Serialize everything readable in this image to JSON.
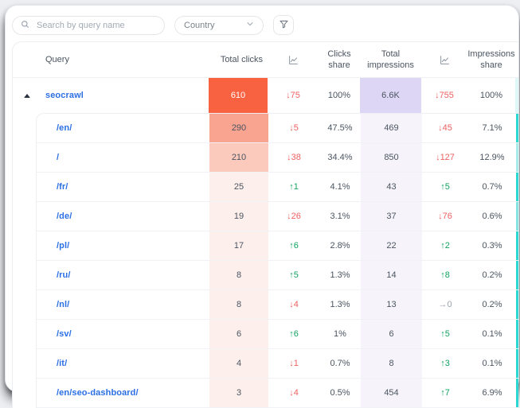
{
  "toolbar": {
    "search_placeholder": "Search by query name",
    "country_label": "Country"
  },
  "table": {
    "headers": {
      "query": "Query",
      "total_clicks": "Total clicks",
      "clicks_share": "Clicks share",
      "total_impressions": "Total impressions",
      "impressions_share": "Impressions share"
    },
    "rows": [
      {
        "name": "seocrawl",
        "level": 0,
        "expanded": true,
        "clicks": "610",
        "clicks_delta": "↓75",
        "clicks_delta_dir": "down",
        "clicks_share": "100%",
        "impressions": "6.6K",
        "impressions_delta": "↓755",
        "impressions_delta_dir": "down",
        "impressions_share": "100%",
        "clicks_bg": "#f96240",
        "clicks_text": "#ffffff",
        "impressions_bg": "#ddd7f5",
        "ctr_bar": "#dff7f6"
      },
      {
        "name": "/en/",
        "level": 1,
        "clicks": "290",
        "clicks_delta": "↓5",
        "clicks_delta_dir": "down",
        "clicks_share": "47.5%",
        "impressions": "469",
        "impressions_delta": "↓45",
        "impressions_delta_dir": "down",
        "impressions_share": "7.1%",
        "clicks_bg": "#f8a491",
        "clicks_text": "#4a5460",
        "impressions_bg": "#f6f4fa",
        "ctr_bar": "#2cd9d2"
      },
      {
        "name": "/",
        "level": 1,
        "clicks": "210",
        "clicks_delta": "↓38",
        "clicks_delta_dir": "down",
        "clicks_share": "34.4%",
        "impressions": "850",
        "impressions_delta": "↓127",
        "impressions_delta_dir": "down",
        "impressions_share": "12.9%",
        "clicks_bg": "#fbcabd",
        "clicks_text": "#4a5460",
        "impressions_bg": "#f6f4fa",
        "ctr_bar": "#a9ece9"
      },
      {
        "name": "/fr/",
        "level": 1,
        "clicks": "25",
        "clicks_delta": "↑1",
        "clicks_delta_dir": "up",
        "clicks_share": "4.1%",
        "impressions": "43",
        "impressions_delta": "↑5",
        "impressions_delta_dir": "up",
        "impressions_share": "0.7%",
        "clicks_bg": "#fdefeb",
        "clicks_text": "#4a5460",
        "impressions_bg": "#f6f4fa",
        "ctr_bar": "#2cd9d2"
      },
      {
        "name": "/de/",
        "level": 1,
        "clicks": "19",
        "clicks_delta": "↓26",
        "clicks_delta_dir": "down",
        "clicks_share": "3.1%",
        "impressions": "37",
        "impressions_delta": "↓76",
        "impressions_delta_dir": "down",
        "impressions_share": "0.6%",
        "clicks_bg": "#fdefeb",
        "clicks_text": "#4a5460",
        "impressions_bg": "#f6f4fa",
        "ctr_bar": "#86e5e0"
      },
      {
        "name": "/pl/",
        "level": 1,
        "clicks": "17",
        "clicks_delta": "↑6",
        "clicks_delta_dir": "up",
        "clicks_share": "2.8%",
        "impressions": "22",
        "impressions_delta": "↑2",
        "impressions_delta_dir": "up",
        "impressions_share": "0.3%",
        "clicks_bg": "#fdefeb",
        "clicks_text": "#4a5460",
        "impressions_bg": "#f6f4fa",
        "ctr_bar": "#2cd9d2"
      },
      {
        "name": "/ru/",
        "level": 1,
        "clicks": "8",
        "clicks_delta": "↑5",
        "clicks_delta_dir": "up",
        "clicks_share": "1.3%",
        "impressions": "14",
        "impressions_delta": "↑8",
        "impressions_delta_dir": "up",
        "impressions_share": "0.2%",
        "clicks_bg": "#fdefeb",
        "clicks_text": "#4a5460",
        "impressions_bg": "#f6f4fa",
        "ctr_bar": "#2cd9d2"
      },
      {
        "name": "/nl/",
        "level": 1,
        "clicks": "8",
        "clicks_delta": "↓4",
        "clicks_delta_dir": "down",
        "clicks_share": "1.3%",
        "impressions": "13",
        "impressions_delta": "→0",
        "impressions_delta_dir": "flat",
        "impressions_share": "0.2%",
        "clicks_bg": "#fdefeb",
        "clicks_text": "#4a5460",
        "impressions_bg": "#f6f4fa",
        "ctr_bar": "#2cd9d2"
      },
      {
        "name": "/sv/",
        "level": 1,
        "clicks": "6",
        "clicks_delta": "↑6",
        "clicks_delta_dir": "up",
        "clicks_share": "1%",
        "impressions": "6",
        "impressions_delta": "↑5",
        "impressions_delta_dir": "up",
        "impressions_share": "0.1%",
        "clicks_bg": "#fdefeb",
        "clicks_text": "#4a5460",
        "impressions_bg": "#f6f4fa",
        "ctr_bar": "#2cd9d2"
      },
      {
        "name": "/it/",
        "level": 1,
        "clicks": "4",
        "clicks_delta": "↓1",
        "clicks_delta_dir": "down",
        "clicks_share": "0.7%",
        "impressions": "8",
        "impressions_delta": "↑3",
        "impressions_delta_dir": "up",
        "impressions_share": "0.1%",
        "clicks_bg": "#fdefeb",
        "clicks_text": "#4a5460",
        "impressions_bg": "#f6f4fa",
        "ctr_bar": "#2cd9d2"
      },
      {
        "name": "/en/seo-dashboard/",
        "level": 1,
        "clicks": "3",
        "clicks_delta": "↓4",
        "clicks_delta_dir": "down",
        "clicks_share": "0.5%",
        "impressions": "454",
        "impressions_delta": "↑7",
        "impressions_delta_dir": "up",
        "impressions_share": "6.9%",
        "clicks_bg": "#fdefeb",
        "clicks_text": "#4a5460",
        "impressions_bg": "#f6f4fa",
        "ctr_bar": "#2cd9d2"
      }
    ]
  },
  "colors": {
    "accent_orange": "#f96240",
    "accent_lavender": "#ddd7f5",
    "accent_teal": "#2cd9d2",
    "positive_green": "#12a35f",
    "negative_red": "#ee6161",
    "neutral_gray": "#9aa2ac",
    "link_blue": "#2b6fe3"
  }
}
